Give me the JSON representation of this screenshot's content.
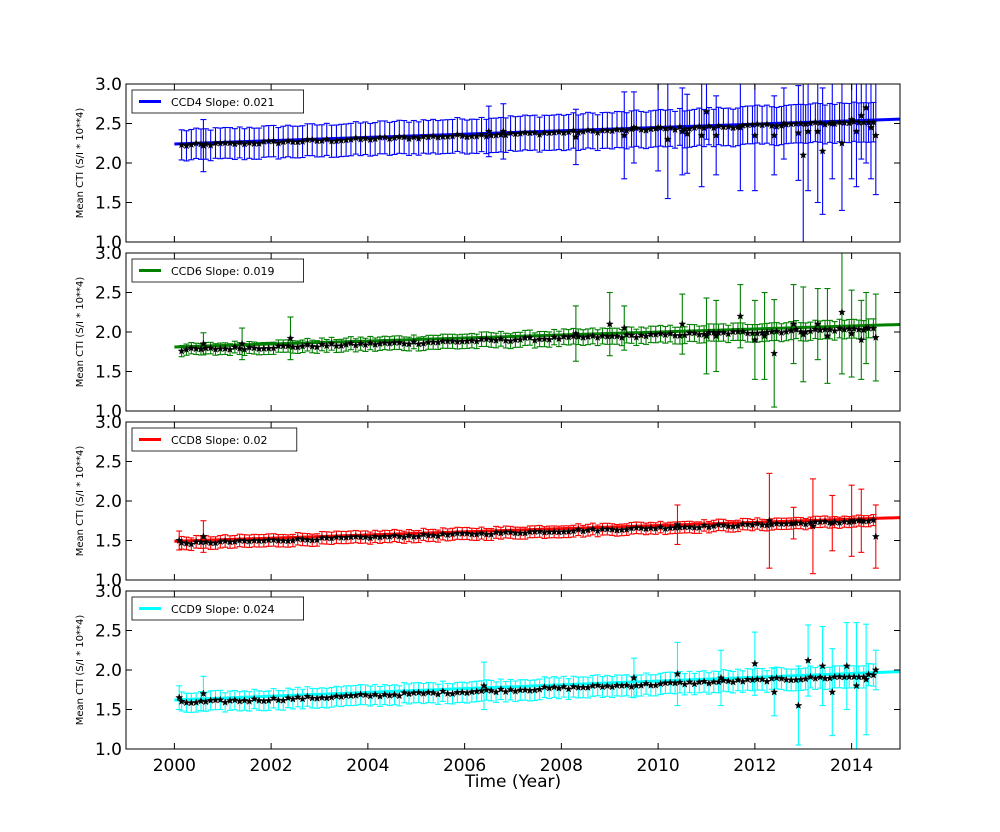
{
  "figure": {
    "xlabel": "Time (Year)",
    "x_ticks": [
      2000,
      2002,
      2004,
      2006,
      2008,
      2010,
      2012,
      2014
    ],
    "xlim": [
      1999,
      2015
    ],
    "ylim": [
      1.0,
      3.0
    ],
    "y_ticks": [
      "1.0",
      "1.5",
      "2.0",
      "2.5",
      "3.0"
    ],
    "ylabel": "Mean CTI (S/I * 10**4)",
    "legend_position": "upper-left",
    "marker": "star",
    "marker_color": "#000000"
  },
  "chart_data": [
    {
      "type": "scatter",
      "series_name": "CCD4",
      "legend_label": "CCD4 Slope: 0.021",
      "color": "#0000ff",
      "fit": {
        "intercept_at_2000": 2.24,
        "slope": 0.021
      },
      "base_start": 2.22,
      "noise_amp": 0.02,
      "err_early": 0.19,
      "err_late": 0.25,
      "outliers": [
        {
          "x": 2000.6,
          "y": 2.22,
          "err": 0.33
        },
        {
          "x": 2006.5,
          "y": 2.4,
          "err": 0.32
        },
        {
          "x": 2006.8,
          "y": 2.4,
          "err": 0.35
        },
        {
          "x": 2008.3,
          "y": 2.33,
          "err": 0.35
        },
        {
          "x": 2009.3,
          "y": 2.35,
          "err": 0.55
        },
        {
          "x": 2009.5,
          "y": 2.45,
          "err": 0.45
        },
        {
          "x": 2010.0,
          "y": 2.45,
          "err": 0.55
        },
        {
          "x": 2010.2,
          "y": 2.3,
          "err": 0.75
        },
        {
          "x": 2010.5,
          "y": 2.4,
          "err": 0.55
        },
        {
          "x": 2010.6,
          "y": 2.37,
          "err": 0.5
        },
        {
          "x": 2010.9,
          "y": 2.35,
          "err": 0.65
        },
        {
          "x": 2011.0,
          "y": 2.65,
          "err": 0.35
        },
        {
          "x": 2011.2,
          "y": 2.35,
          "err": 0.5
        },
        {
          "x": 2011.7,
          "y": 2.45,
          "err": 0.8
        },
        {
          "x": 2012.0,
          "y": 2.35,
          "err": 0.7
        },
        {
          "x": 2012.4,
          "y": 2.35,
          "err": 0.5
        },
        {
          "x": 2012.6,
          "y": 2.5,
          "err": 0.45
        },
        {
          "x": 2012.9,
          "y": 2.38,
          "err": 0.6
        },
        {
          "x": 2013.0,
          "y": 2.1,
          "err": 1.2
        },
        {
          "x": 2013.1,
          "y": 2.4,
          "err": 0.75
        },
        {
          "x": 2013.3,
          "y": 2.4,
          "err": 0.9
        },
        {
          "x": 2013.4,
          "y": 2.15,
          "err": 0.8
        },
        {
          "x": 2013.6,
          "y": 2.5,
          "err": 0.7
        },
        {
          "x": 2013.8,
          "y": 2.25,
          "err": 0.85
        },
        {
          "x": 2014.0,
          "y": 2.55,
          "err": 0.75
        },
        {
          "x": 2014.1,
          "y": 2.4,
          "err": 0.7
        },
        {
          "x": 2014.2,
          "y": 2.6,
          "err": 0.55
        },
        {
          "x": 2014.3,
          "y": 2.7,
          "err": 0.7
        },
        {
          "x": 2014.4,
          "y": 2.45,
          "err": 0.65
        },
        {
          "x": 2014.5,
          "y": 2.35,
          "err": 0.75
        }
      ]
    },
    {
      "type": "scatter",
      "series_name": "CCD6",
      "legend_label": "CCD6 Slope: 0.019",
      "color": "#008000",
      "fit": {
        "intercept_at_2000": 1.81,
        "slope": 0.019
      },
      "base_start": 1.77,
      "noise_amp": 0.02,
      "err_early": 0.07,
      "err_late": 0.12,
      "outliers": [
        {
          "x": 2000.6,
          "y": 1.85,
          "err": 0.14
        },
        {
          "x": 2001.4,
          "y": 1.85,
          "err": 0.2
        },
        {
          "x": 2002.4,
          "y": 1.92,
          "err": 0.27
        },
        {
          "x": 2008.3,
          "y": 1.98,
          "err": 0.35
        },
        {
          "x": 2009.0,
          "y": 2.1,
          "err": 0.4
        },
        {
          "x": 2009.3,
          "y": 2.05,
          "err": 0.28
        },
        {
          "x": 2010.5,
          "y": 2.1,
          "err": 0.38
        },
        {
          "x": 2011.0,
          "y": 1.95,
          "err": 0.48
        },
        {
          "x": 2011.2,
          "y": 1.95,
          "err": 0.45
        },
        {
          "x": 2011.7,
          "y": 2.2,
          "err": 0.4
        },
        {
          "x": 2012.0,
          "y": 1.9,
          "err": 0.5
        },
        {
          "x": 2012.2,
          "y": 1.95,
          "err": 0.55
        },
        {
          "x": 2012.4,
          "y": 1.73,
          "err": 0.68
        },
        {
          "x": 2012.8,
          "y": 2.1,
          "err": 0.5
        },
        {
          "x": 2013.0,
          "y": 1.97,
          "err": 0.6
        },
        {
          "x": 2013.3,
          "y": 2.1,
          "err": 0.45
        },
        {
          "x": 2013.5,
          "y": 1.95,
          "err": 0.6
        },
        {
          "x": 2013.8,
          "y": 2.25,
          "err": 0.78
        },
        {
          "x": 2014.0,
          "y": 1.98,
          "err": 0.55
        },
        {
          "x": 2014.2,
          "y": 1.9,
          "err": 0.5
        },
        {
          "x": 2014.3,
          "y": 2.05,
          "err": 0.45
        },
        {
          "x": 2014.5,
          "y": 1.93,
          "err": 0.55
        }
      ]
    },
    {
      "type": "scatter",
      "series_name": "CCD8",
      "legend_label": "CCD8 Slope: 0.02",
      "color": "#ff0000",
      "fit": {
        "intercept_at_2000": 1.49,
        "slope": 0.02
      },
      "base_start": 1.46,
      "noise_amp": 0.015,
      "err_early": 0.08,
      "err_late": 0.07,
      "outliers": [
        {
          "x": 2000.1,
          "y": 1.5,
          "err": 0.12
        },
        {
          "x": 2000.6,
          "y": 1.55,
          "err": 0.2
        },
        {
          "x": 2010.4,
          "y": 1.7,
          "err": 0.25
        },
        {
          "x": 2012.3,
          "y": 1.75,
          "err": 0.6
        },
        {
          "x": 2012.8,
          "y": 1.72,
          "err": 0.2
        },
        {
          "x": 2013.2,
          "y": 1.68,
          "err": 0.6
        },
        {
          "x": 2013.6,
          "y": 1.72,
          "err": 0.35
        },
        {
          "x": 2014.0,
          "y": 1.75,
          "err": 0.45
        },
        {
          "x": 2014.2,
          "y": 1.75,
          "err": 0.4
        },
        {
          "x": 2014.5,
          "y": 1.55,
          "err": 0.4
        }
      ]
    },
    {
      "type": "scatter",
      "series_name": "CCD9",
      "legend_label": "CCD9 Slope: 0.024",
      "color": "#00ffff",
      "fit": {
        "intercept_at_2000": 1.62,
        "slope": 0.024
      },
      "base_start": 1.58,
      "noise_amp": 0.02,
      "err_early": 0.12,
      "err_late": 0.14,
      "outliers": [
        {
          "x": 2000.1,
          "y": 1.65,
          "err": 0.15
        },
        {
          "x": 2000.6,
          "y": 1.7,
          "err": 0.22
        },
        {
          "x": 2006.4,
          "y": 1.8,
          "err": 0.3
        },
        {
          "x": 2009.5,
          "y": 1.9,
          "err": 0.25
        },
        {
          "x": 2010.4,
          "y": 1.95,
          "err": 0.4
        },
        {
          "x": 2011.3,
          "y": 1.9,
          "err": 0.35
        },
        {
          "x": 2012.0,
          "y": 2.08,
          "err": 0.4
        },
        {
          "x": 2012.4,
          "y": 1.72,
          "err": 0.3
        },
        {
          "x": 2012.9,
          "y": 1.55,
          "err": 0.5
        },
        {
          "x": 2013.1,
          "y": 2.12,
          "err": 0.45
        },
        {
          "x": 2013.4,
          "y": 2.05,
          "err": 0.5
        },
        {
          "x": 2013.6,
          "y": 1.72,
          "err": 0.55
        },
        {
          "x": 2013.9,
          "y": 2.05,
          "err": 0.55
        },
        {
          "x": 2014.1,
          "y": 1.8,
          "err": 0.8
        },
        {
          "x": 2014.3,
          "y": 1.88,
          "err": 0.7
        },
        {
          "x": 2014.5,
          "y": 2.0,
          "err": 0.25
        }
      ]
    }
  ]
}
